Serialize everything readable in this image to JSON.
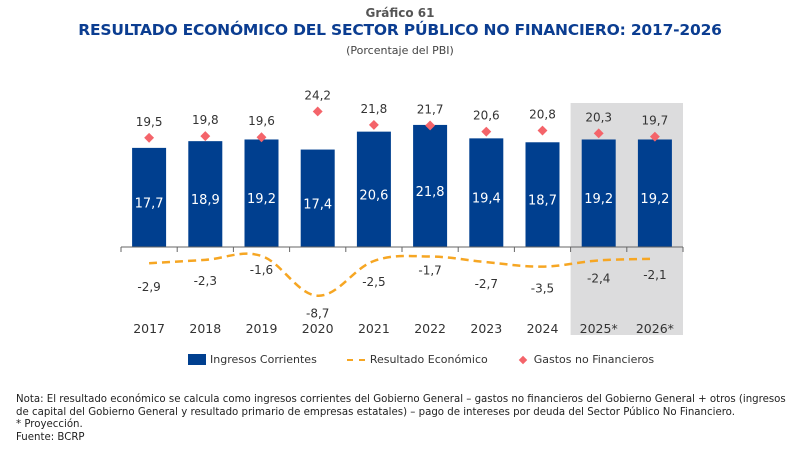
{
  "header": {
    "kicker": "Gráfico 61",
    "title": "RESULTADO ECONÓMICO DEL SECTOR PÚBLICO NO FINANCIERO: 2017-2026",
    "subtitle": "(Porcentaje del PBI)"
  },
  "colors": {
    "bars": "#003f8f",
    "line": "#f6a623",
    "markers": "#f4646a",
    "projection_shade": "#dcdcdd",
    "title": "#0b3d91"
  },
  "chart_data": {
    "type": "bar",
    "title": "RESULTADO ECONÓMICO DEL SECTOR PÚBLICO NO FINANCIERO: 2017-2026",
    "subtitle": "(Porcentaje del PBI)",
    "xlabel": "",
    "ylabel": "Porcentaje del PBI",
    "categories": [
      "2017",
      "2018",
      "2019",
      "2020",
      "2021",
      "2022",
      "2023",
      "2024",
      "2025*",
      "2026*"
    ],
    "projected_categories": [
      "2025*",
      "2026*"
    ],
    "ylim": [
      -9,
      25
    ],
    "grid": false,
    "legend_position": "bottom",
    "series": [
      {
        "name": "Ingresos Corrientes",
        "type": "bar",
        "values": [
          17.7,
          18.9,
          19.2,
          17.4,
          20.6,
          21.8,
          19.4,
          18.7,
          19.2,
          19.2
        ],
        "labels": [
          "17,7",
          "18,9",
          "19,2",
          "17,4",
          "20,6",
          "21,8",
          "19,4",
          "18,7",
          "19,2",
          "19,2"
        ]
      },
      {
        "name": "Resultado Económico",
        "type": "line",
        "style": "dashed",
        "values": [
          -2.9,
          -2.3,
          -1.6,
          -8.7,
          -2.5,
          -1.7,
          -2.7,
          -3.5,
          -2.4,
          -2.1
        ],
        "labels": [
          "-2,9",
          "-2,3",
          "-1,6",
          "-8,7",
          "-2,5",
          "-1,7",
          "-2,7",
          "-3,5",
          "-2,4",
          "-2,1"
        ]
      },
      {
        "name": "Gastos no Financieros",
        "type": "scatter",
        "marker": "diamond",
        "values": [
          19.5,
          19.8,
          19.6,
          24.2,
          21.8,
          21.7,
          20.6,
          20.8,
          20.3,
          19.7
        ],
        "labels": [
          "19,5",
          "19,8",
          "19,6",
          "24,2",
          "21,8",
          "21,7",
          "20,6",
          "20,8",
          "20,3",
          "19,7"
        ]
      }
    ]
  },
  "legend": {
    "bars": "Ingresos Corrientes",
    "line": "Resultado Económico",
    "markers": "Gastos no Financieros"
  },
  "notes": {
    "nota": "Nota: El resultado económico se calcula como ingresos corrientes del Gobierno General – gastos no financieros del Gobierno General + otros (ingresos de capital del Gobierno General y resultado primario de empresas estatales) – pago de intereses por deuda del Sector Público No Financiero.",
    "proyeccion": "*  Proyección.",
    "fuente": "Fuente: BCRP"
  }
}
